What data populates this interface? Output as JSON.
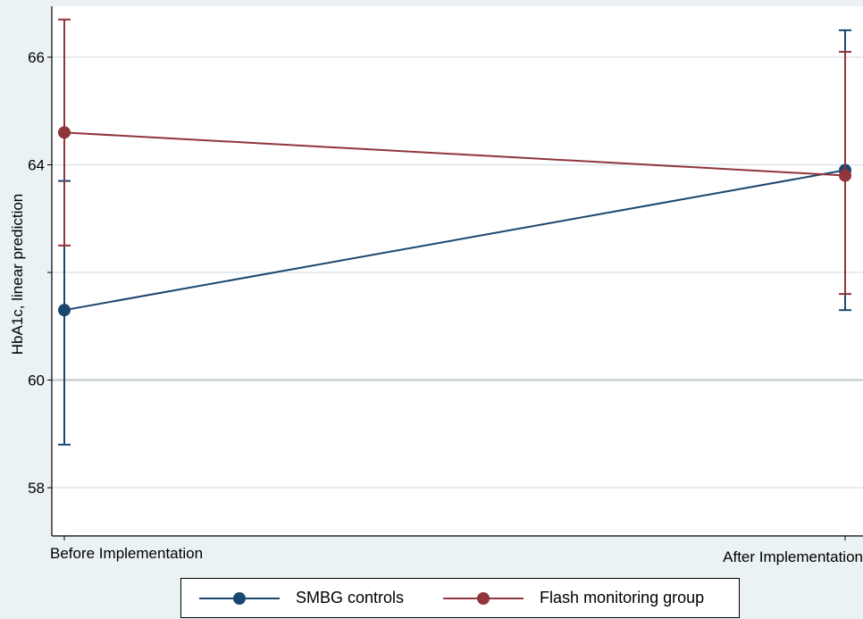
{
  "chart_data": {
    "type": "line",
    "title": "",
    "xlabel": "",
    "ylabel": "HbA1c, linear prediction",
    "categories": [
      "Before Implementation",
      "After Implementation"
    ],
    "yticks": [
      58,
      60,
      64,
      66
    ],
    "ylim": [
      57,
      67.3
    ],
    "grid": true,
    "legend_position": "bottom",
    "series": [
      {
        "name": "SMBG controls",
        "color": "#1a476f",
        "values": [
          61.3,
          63.9
        ],
        "ci_low": [
          58.8,
          61.3
        ],
        "ci_high": [
          63.7,
          66.5
        ]
      },
      {
        "name": "Flash monitoring group",
        "color": "#90353b",
        "values": [
          64.6,
          63.8
        ],
        "ci_low": [
          62.5,
          61.6
        ],
        "ci_high": [
          66.7,
          66.1
        ]
      }
    ]
  }
}
